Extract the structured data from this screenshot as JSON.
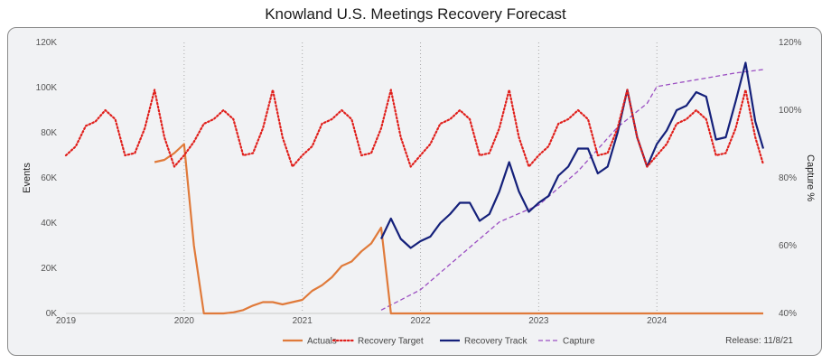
{
  "title": "Knowland U.S. Meetings Recovery Forecast",
  "release": "Release: 11/8/21",
  "chart_data": {
    "type": "line",
    "title": "Knowland U.S. Meetings Recovery Forecast",
    "ylabel": "Events",
    "y2label": "Capture %",
    "xlim": [
      2019.0,
      2024.9
    ],
    "ylim": [
      0,
      120000
    ],
    "y2lim": [
      40,
      120
    ],
    "x_ticks": [
      2019,
      2020,
      2021,
      2022,
      2023,
      2024
    ],
    "x_tick_labels": [
      "2019",
      "2020",
      "2021",
      "2022",
      "2023",
      "2024"
    ],
    "y_ticks": [
      0,
      20000,
      40000,
      60000,
      80000,
      100000,
      120000
    ],
    "y_tick_labels": [
      "0K",
      "20K",
      "40K",
      "60K",
      "80K",
      "100K",
      "120K"
    ],
    "y2_ticks": [
      40,
      60,
      80,
      100,
      120
    ],
    "y2_tick_labels": [
      "40%",
      "60%",
      "80%",
      "100%",
      "120%"
    ],
    "vertical_gridlines": true,
    "legend_position": "bottom",
    "colors": {
      "Actuals": "#e07a3a",
      "Recovery Target": "#e0201c",
      "Recovery Track": "#14207a",
      "Capture": "#9b4fc2"
    },
    "series": [
      {
        "name": "Actuals",
        "axis": "left",
        "style": "solid",
        "x": [
          2019.75,
          2019.833,
          2019.917,
          2020.0,
          2020.083,
          2020.167,
          2020.25,
          2020.333,
          2020.417,
          2020.5,
          2020.583,
          2020.667,
          2020.75,
          2020.833,
          2020.917,
          2021.0,
          2021.083,
          2021.167,
          2021.25,
          2021.333,
          2021.417,
          2021.5,
          2021.583,
          2021.667,
          2021.75,
          2021.833,
          2023.0,
          2024.0,
          2024.9
        ],
        "y": [
          67000,
          68000,
          71000,
          75000,
          30000,
          0,
          0,
          0,
          500,
          1500,
          3500,
          5000,
          5000,
          4000,
          5000,
          6000,
          10000,
          12500,
          16000,
          21000,
          23000,
          27500,
          31000,
          38000,
          0,
          0,
          0,
          0,
          0
        ]
      },
      {
        "name": "Recovery Target",
        "axis": "left",
        "style": "dotted",
        "x": [
          2019.0,
          2019.083,
          2019.167,
          2019.25,
          2019.333,
          2019.417,
          2019.5,
          2019.583,
          2019.667,
          2019.75,
          2019.833,
          2019.917,
          2020.0,
          2020.083,
          2020.167,
          2020.25,
          2020.333,
          2020.417,
          2020.5,
          2020.583,
          2020.667,
          2020.75,
          2020.833,
          2020.917,
          2021.0,
          2021.083,
          2021.167,
          2021.25,
          2021.333,
          2021.417,
          2021.5,
          2021.583,
          2021.667,
          2021.75,
          2021.833,
          2021.917,
          2022.0,
          2022.083,
          2022.167,
          2022.25,
          2022.333,
          2022.417,
          2022.5,
          2022.583,
          2022.667,
          2022.75,
          2022.833,
          2022.917,
          2023.0,
          2023.083,
          2023.167,
          2023.25,
          2023.333,
          2023.417,
          2023.5,
          2023.583,
          2023.667,
          2023.75,
          2023.833,
          2023.917,
          2024.0,
          2024.083,
          2024.167,
          2024.25,
          2024.333,
          2024.417,
          2024.5,
          2024.583,
          2024.667,
          2024.75,
          2024.833,
          2024.9
        ],
        "y": [
          70000,
          74000,
          83000,
          85000,
          90000,
          86000,
          70000,
          71000,
          82000,
          99000,
          78000,
          65000,
          70000,
          76000,
          84000,
          86000,
          90000,
          86000,
          70000,
          71000,
          82000,
          99000,
          78000,
          65000,
          70000,
          74000,
          84000,
          86000,
          90000,
          86000,
          70000,
          71000,
          82000,
          99000,
          78000,
          65000,
          70000,
          75000,
          84000,
          86000,
          90000,
          86000,
          70000,
          71000,
          82000,
          99000,
          78000,
          65000,
          70000,
          74000,
          84000,
          86000,
          90000,
          86000,
          70000,
          71000,
          82000,
          99000,
          78000,
          65000,
          70000,
          75000,
          84000,
          86000,
          90000,
          86000,
          70000,
          71000,
          82000,
          99000,
          78000,
          66000
        ]
      },
      {
        "name": "Recovery Track",
        "axis": "left",
        "style": "solid",
        "x": [
          2021.667,
          2021.75,
          2021.833,
          2021.917,
          2022.0,
          2022.083,
          2022.167,
          2022.25,
          2022.333,
          2022.417,
          2022.5,
          2022.583,
          2022.667,
          2022.75,
          2022.833,
          2022.917,
          2023.0,
          2023.083,
          2023.167,
          2023.25,
          2023.333,
          2023.417,
          2023.5,
          2023.583,
          2023.667,
          2023.75,
          2023.833,
          2023.917,
          2024.0,
          2024.083,
          2024.167,
          2024.25,
          2024.333,
          2024.417,
          2024.5,
          2024.583,
          2024.667,
          2024.75,
          2024.833,
          2024.9
        ],
        "y": [
          33000,
          42000,
          33000,
          29000,
          32000,
          34000,
          40000,
          44000,
          49000,
          49000,
          41000,
          44000,
          54000,
          67000,
          54000,
          45000,
          49000,
          52000,
          61000,
          65000,
          73000,
          73000,
          62000,
          65000,
          80000,
          99000,
          78000,
          65000,
          75000,
          81000,
          90000,
          92000,
          98000,
          96000,
          77000,
          78000,
          94000,
          111000,
          85000,
          73000
        ]
      },
      {
        "name": "Capture",
        "axis": "right",
        "style": "dashed",
        "x": [
          2021.667,
          2022.0,
          2022.333,
          2022.667,
          2023.0,
          2023.333,
          2023.667,
          2023.917,
          2024.0,
          2024.333,
          2024.667,
          2024.9
        ],
        "y": [
          41,
          47,
          57,
          67,
          72,
          82,
          95,
          102,
          107,
          109,
          111,
          112
        ]
      }
    ]
  }
}
